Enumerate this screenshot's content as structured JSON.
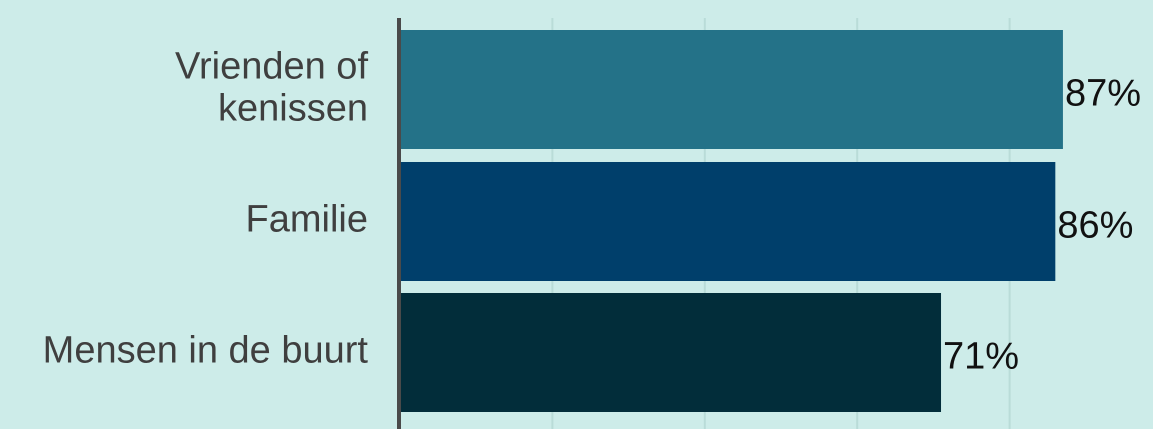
{
  "chart_data": {
    "type": "bar",
    "orientation": "horizontal",
    "categories": [
      "Vrienden of kenissen",
      "Familie",
      "Mensen in de buurt"
    ],
    "category_lines": [
      [
        "Vrienden of",
        "kenissen"
      ],
      [
        "Familie"
      ],
      [
        "Mensen in de buurt"
      ]
    ],
    "values": [
      87,
      86,
      71
    ],
    "value_labels": [
      "87%",
      "86%",
      "71%"
    ],
    "bar_colors": [
      "#247288",
      "#003f6b",
      "#022d3a"
    ],
    "xlim": [
      0,
      100
    ],
    "grid": true,
    "background": "#cdece9",
    "axis_color": "#4a4a4a",
    "grid_color": "#b9dcd8"
  }
}
